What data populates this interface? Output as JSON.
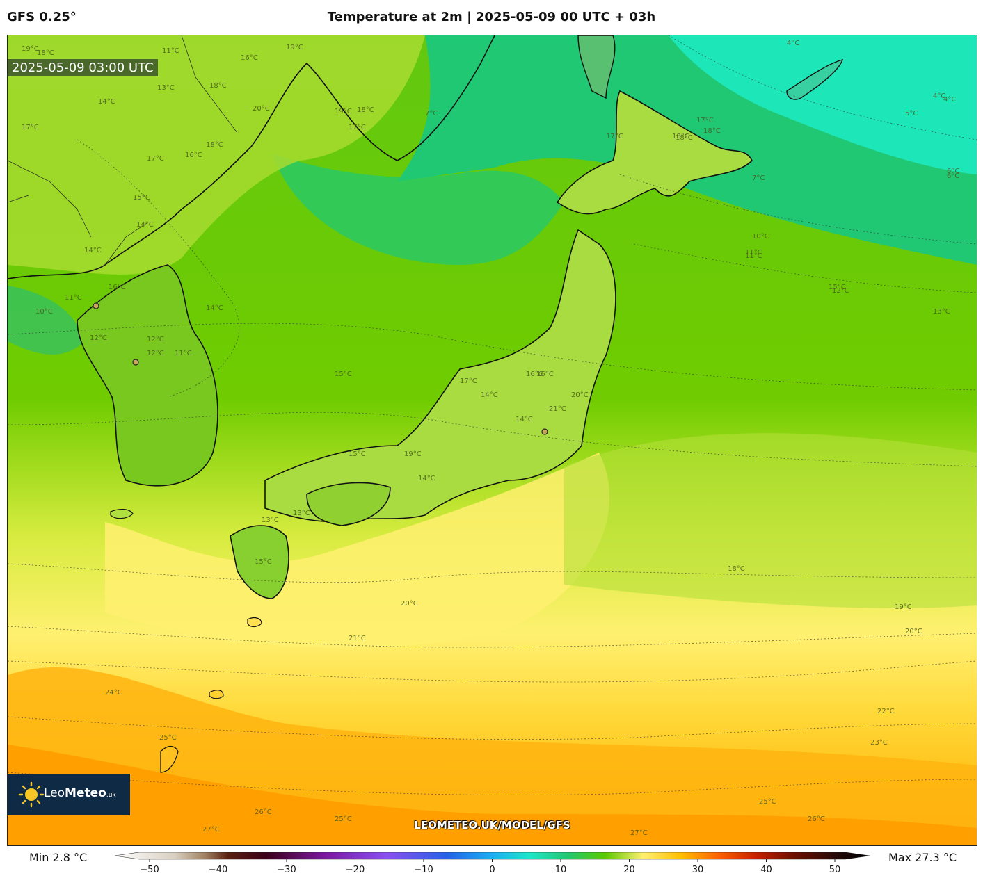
{
  "header": {
    "model": "GFS 0.25°",
    "title": "Temperature at 2m | 2025-05-09 00 UTC + 03h"
  },
  "map": {
    "valid_time": "2025-05-09 03:00 UTC",
    "watermark": "LEOMETEO.UK/MODEL/GFS",
    "logo": {
      "icon": "sun-icon",
      "name_light": "Leo",
      "name_bold": "Meteo",
      "suffix": ".uk"
    },
    "contour_labels": [
      {
        "text": "19°C"
      },
      {
        "text": "18°C"
      },
      {
        "text": "16°C"
      },
      {
        "text": "19°C"
      },
      {
        "text": "11°C"
      },
      {
        "text": "20°C"
      },
      {
        "text": "19°C"
      },
      {
        "text": "18°C"
      },
      {
        "text": "17°C"
      },
      {
        "text": "14°C"
      },
      {
        "text": "13°C"
      },
      {
        "text": "18°C"
      },
      {
        "text": "17°C"
      },
      {
        "text": "18°C"
      },
      {
        "text": "17°C"
      },
      {
        "text": "16°C"
      },
      {
        "text": "15°C"
      },
      {
        "text": "14°C"
      },
      {
        "text": "16°C"
      },
      {
        "text": "14°C"
      },
      {
        "text": "10°C"
      },
      {
        "text": "11°C"
      },
      {
        "text": "12°C"
      },
      {
        "text": "12°C"
      },
      {
        "text": "11°C"
      },
      {
        "text": "14°C"
      },
      {
        "text": "15°C"
      },
      {
        "text": "16°C"
      },
      {
        "text": "11°C"
      },
      {
        "text": "7°C"
      },
      {
        "text": "6°C"
      },
      {
        "text": "4°C"
      },
      {
        "text": "4°C"
      },
      {
        "text": "4°C"
      },
      {
        "text": "5°C"
      },
      {
        "text": "6°C"
      },
      {
        "text": "7°C"
      },
      {
        "text": "10°C"
      },
      {
        "text": "11°C"
      },
      {
        "text": "12°C"
      },
      {
        "text": "13°C"
      },
      {
        "text": "17°C"
      },
      {
        "text": "18°C"
      },
      {
        "text": "18°C"
      },
      {
        "text": "17°C"
      },
      {
        "text": "18°C"
      },
      {
        "text": "16°C"
      },
      {
        "text": "20°C"
      },
      {
        "text": "21°C"
      },
      {
        "text": "14°C"
      },
      {
        "text": "14°C"
      },
      {
        "text": "19°C"
      },
      {
        "text": "14°C"
      },
      {
        "text": "13°C"
      },
      {
        "text": "15°C"
      },
      {
        "text": "15°C"
      },
      {
        "text": "18°C"
      },
      {
        "text": "19°C"
      },
      {
        "text": "20°C"
      },
      {
        "text": "21°C"
      },
      {
        "text": "20°C"
      },
      {
        "text": "22°C"
      },
      {
        "text": "23°C"
      },
      {
        "text": "24°C"
      },
      {
        "text": "25°C"
      },
      {
        "text": "25°C"
      },
      {
        "text": "26°C"
      },
      {
        "text": "26°C"
      },
      {
        "text": "25°C"
      },
      {
        "text": "27°C"
      },
      {
        "text": "27°C"
      },
      {
        "text": "17°C"
      },
      {
        "text": "13°C"
      },
      {
        "text": "12°C"
      },
      {
        "text": "15°C"
      }
    ]
  },
  "scale": {
    "min_label": "Min 2.8 °C",
    "max_label": "Max 27.3 °C",
    "ticks": [
      "−50",
      "−40",
      "−30",
      "−20",
      "−10",
      "0",
      "10",
      "20",
      "30",
      "40",
      "50"
    ]
  },
  "colors": {
    "cold": "#1de6b8",
    "cool": "#3cd08a",
    "mild": "#5ec800",
    "warm": "#c8e830",
    "hot": "#fff070",
    "hotter": "#ffd020",
    "hottest": "#ffa000"
  }
}
